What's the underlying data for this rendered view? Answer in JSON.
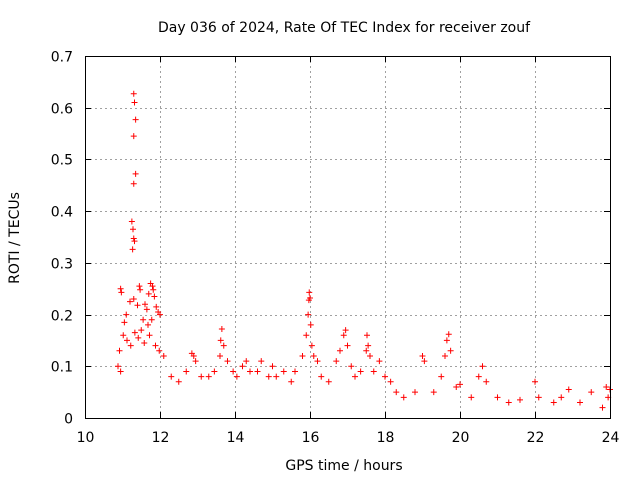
{
  "chart_data": {
    "type": "scatter",
    "title": "Day 036 of 2024, Rate Of TEC Index for receiver zouf",
    "xlabel": "GPS time / hours",
    "ylabel": "ROTI / TECUs",
    "xlim": [
      10,
      24
    ],
    "ylim": [
      0,
      0.7
    ],
    "x_ticks": [
      "10",
      "12",
      "14",
      "16",
      "18",
      "20",
      "22",
      "24"
    ],
    "y_ticks": [
      "0",
      "0.1",
      "0.2",
      "0.3",
      "0.4",
      "0.5",
      "0.6",
      "0.7"
    ],
    "grid": true,
    "marker": "+",
    "color": "#ff0000",
    "series": [
      {
        "name": "ROTI",
        "points": [
          [
            11.3,
            0.627
          ],
          [
            11.32,
            0.61
          ],
          [
            11.35,
            0.577
          ],
          [
            11.3,
            0.545
          ],
          [
            11.35,
            0.472
          ],
          [
            11.3,
            0.453
          ],
          [
            11.25,
            0.38
          ],
          [
            11.28,
            0.365
          ],
          [
            11.3,
            0.347
          ],
          [
            11.32,
            0.342
          ],
          [
            11.27,
            0.326
          ],
          [
            10.95,
            0.25
          ],
          [
            10.97,
            0.243
          ],
          [
            11.45,
            0.255
          ],
          [
            11.47,
            0.248
          ],
          [
            11.75,
            0.26
          ],
          [
            11.8,
            0.255
          ],
          [
            11.82,
            0.248
          ],
          [
            11.7,
            0.24
          ],
          [
            11.85,
            0.235
          ],
          [
            11.95,
            0.205
          ],
          [
            12.0,
            0.2
          ],
          [
            11.6,
            0.22
          ],
          [
            11.65,
            0.21
          ],
          [
            11.1,
            0.2
          ],
          [
            11.05,
            0.185
          ],
          [
            11.2,
            0.225
          ],
          [
            11.3,
            0.23
          ],
          [
            11.4,
            0.218
          ],
          [
            11.55,
            0.19
          ],
          [
            11.9,
            0.215
          ],
          [
            11.78,
            0.19
          ],
          [
            11.68,
            0.18
          ],
          [
            11.5,
            0.17
          ],
          [
            11.02,
            0.16
          ],
          [
            11.12,
            0.15
          ],
          [
            11.22,
            0.14
          ],
          [
            11.33,
            0.165
          ],
          [
            11.42,
            0.155
          ],
          [
            11.58,
            0.145
          ],
          [
            11.72,
            0.16
          ],
          [
            11.88,
            0.14
          ],
          [
            11.98,
            0.13
          ],
          [
            10.92,
            0.13
          ],
          [
            10.88,
            0.1
          ],
          [
            10.95,
            0.09
          ],
          [
            12.1,
            0.12
          ],
          [
            12.3,
            0.08
          ],
          [
            12.5,
            0.07
          ],
          [
            12.7,
            0.09
          ],
          [
            12.85,
            0.125
          ],
          [
            12.9,
            0.12
          ],
          [
            12.95,
            0.11
          ],
          [
            13.1,
            0.08
          ],
          [
            13.3,
            0.08
          ],
          [
            13.45,
            0.09
          ],
          [
            13.6,
            0.12
          ],
          [
            13.62,
            0.15
          ],
          [
            13.65,
            0.172
          ],
          [
            13.7,
            0.14
          ],
          [
            13.8,
            0.11
          ],
          [
            13.95,
            0.09
          ],
          [
            14.05,
            0.08
          ],
          [
            14.2,
            0.1
          ],
          [
            14.3,
            0.11
          ],
          [
            14.4,
            0.09
          ],
          [
            14.6,
            0.09
          ],
          [
            14.7,
            0.11
          ],
          [
            14.9,
            0.08
          ],
          [
            15.0,
            0.1
          ],
          [
            15.1,
            0.08
          ],
          [
            15.3,
            0.09
          ],
          [
            15.5,
            0.07
          ],
          [
            15.6,
            0.09
          ],
          [
            15.8,
            0.12
          ],
          [
            15.9,
            0.16
          ],
          [
            15.95,
            0.2
          ],
          [
            15.97,
            0.228
          ],
          [
            15.98,
            0.243
          ],
          [
            16.0,
            0.232
          ],
          [
            16.02,
            0.18
          ],
          [
            16.05,
            0.14
          ],
          [
            16.1,
            0.12
          ],
          [
            16.2,
            0.11
          ],
          [
            16.3,
            0.08
          ],
          [
            16.5,
            0.07
          ],
          [
            16.7,
            0.11
          ],
          [
            16.8,
            0.13
          ],
          [
            16.9,
            0.16
          ],
          [
            16.95,
            0.17
          ],
          [
            17.0,
            0.14
          ],
          [
            17.1,
            0.1
          ],
          [
            17.2,
            0.08
          ],
          [
            17.35,
            0.09
          ],
          [
            17.5,
            0.13
          ],
          [
            17.52,
            0.16
          ],
          [
            17.55,
            0.14
          ],
          [
            17.6,
            0.12
          ],
          [
            17.7,
            0.09
          ],
          [
            17.85,
            0.11
          ],
          [
            18.0,
            0.08
          ],
          [
            18.15,
            0.07
          ],
          [
            18.3,
            0.05
          ],
          [
            18.5,
            0.04
          ],
          [
            18.8,
            0.05
          ],
          [
            19.0,
            0.12
          ],
          [
            19.05,
            0.11
          ],
          [
            19.3,
            0.05
          ],
          [
            19.5,
            0.08
          ],
          [
            19.6,
            0.12
          ],
          [
            19.65,
            0.15
          ],
          [
            19.7,
            0.162
          ],
          [
            19.75,
            0.13
          ],
          [
            19.9,
            0.06
          ],
          [
            20.0,
            0.065
          ],
          [
            20.3,
            0.04
          ],
          [
            20.5,
            0.08
          ],
          [
            20.6,
            0.1
          ],
          [
            20.7,
            0.07
          ],
          [
            21.0,
            0.04
          ],
          [
            21.3,
            0.03
          ],
          [
            21.6,
            0.035
          ],
          [
            22.0,
            0.07
          ],
          [
            22.1,
            0.04
          ],
          [
            22.5,
            0.03
          ],
          [
            22.7,
            0.04
          ],
          [
            22.9,
            0.055
          ],
          [
            23.2,
            0.03
          ],
          [
            23.5,
            0.05
          ],
          [
            23.9,
            0.06
          ],
          [
            24.0,
            0.055
          ],
          [
            23.95,
            0.04
          ],
          [
            23.8,
            0.02
          ]
        ]
      }
    ]
  }
}
